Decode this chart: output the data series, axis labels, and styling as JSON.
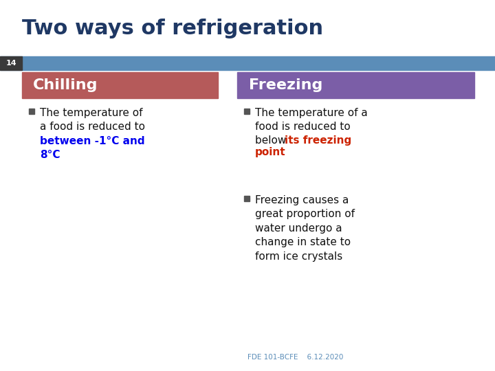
{
  "title": "Two ways of refrigeration",
  "title_color": "#1F3864",
  "title_fontsize": 22,
  "slide_number": "14",
  "slide_num_color": "#ffffff",
  "header_bar_color": "#5B8DB8",
  "slide_num_bg": "#3a3a3a",
  "chilling_header": "Chilling",
  "chilling_header_bg": "#B55A5A",
  "chilling_header_color": "#ffffff",
  "freezing_header": "Freezing",
  "freezing_header_bg": "#7B5EA7",
  "freezing_header_color": "#ffffff",
  "footer": "FDE 101-BCFE    6.12.2020",
  "footer_color": "#5B8DB8",
  "bullet_color": "#555555",
  "text_color": "#111111",
  "blue_text_color": "#0000EE",
  "red_text_color": "#CC2200",
  "background_color": "#ffffff"
}
